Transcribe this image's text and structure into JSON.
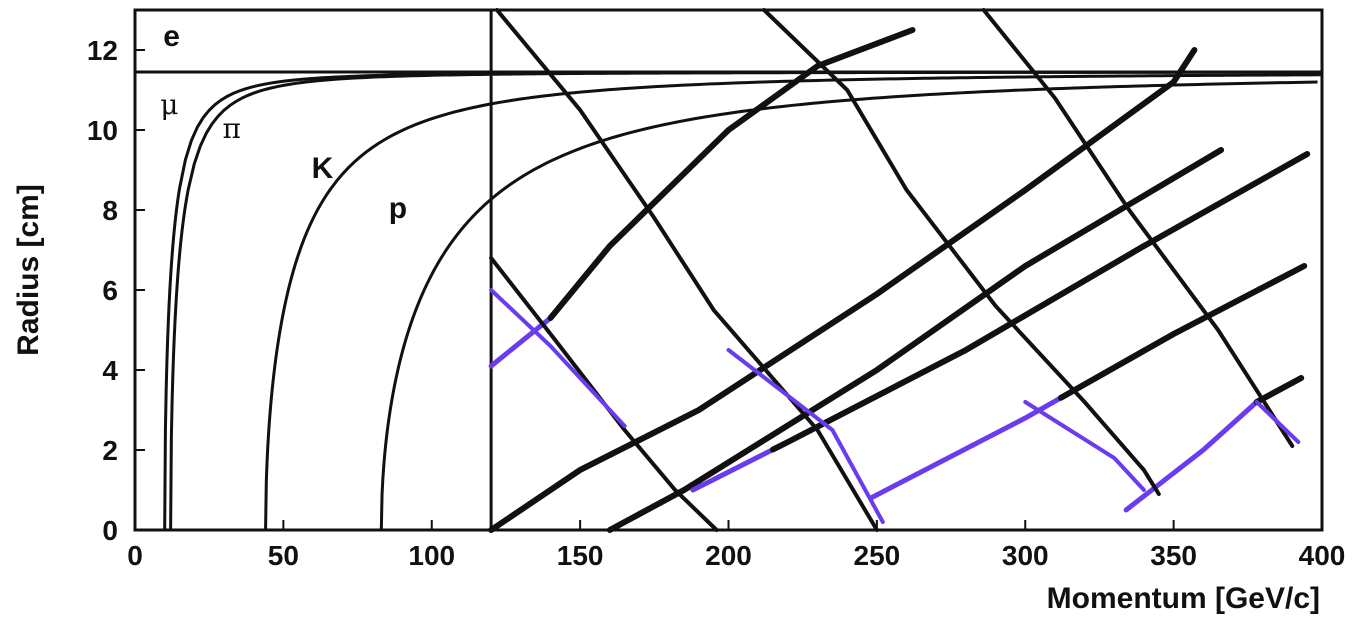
{
  "chart_data": {
    "type": "line",
    "xlabel": "Momentum [GeV/c]",
    "ylabel": "Radius [cm]",
    "xlim": [
      0,
      400
    ],
    "ylim": [
      0,
      13
    ],
    "x_ticks": [
      "0",
      "50",
      "100",
      "150",
      "200",
      "250",
      "300",
      "350",
      "400"
    ],
    "y_ticks": [
      "0",
      "2",
      "4",
      "6",
      "8",
      "10",
      "12"
    ],
    "grid": false,
    "colors": {
      "curve": "#111111",
      "highlight": "#6a3cf0"
    },
    "particle_curves": [
      {
        "label": "e",
        "threshold": 0.01,
        "r_inf": 11.45
      },
      {
        "label": "μ",
        "threshold": 10,
        "r_inf": 11.45
      },
      {
        "label": "π",
        "threshold": 12,
        "r_inf": 11.45
      },
      {
        "label": "K",
        "threshold": 44,
        "r_inf": 11.45
      },
      {
        "label": "p",
        "threshold": 83,
        "r_inf": 11.45
      }
    ],
    "cutoff_line": {
      "x": 120,
      "y_range": [
        0,
        13
      ]
    },
    "track_rising": [
      {
        "points": [
          [
            120,
            4.1
          ],
          [
            140,
            5.3
          ],
          [
            160,
            7.1
          ],
          [
            200,
            10.0
          ],
          [
            230,
            11.6
          ],
          [
            262,
            12.5
          ]
        ],
        "highlight_to_x": 140
      },
      {
        "points": [
          [
            120,
            0.0
          ],
          [
            150,
            1.5
          ],
          [
            190,
            3.0
          ],
          [
            250,
            5.9
          ],
          [
            300,
            8.5
          ],
          [
            350,
            11.2
          ],
          [
            357,
            12.0
          ]
        ],
        "highlight_to_x": 0
      },
      {
        "points": [
          [
            160,
            0.0
          ],
          [
            185,
            1.0
          ],
          [
            250,
            4.0
          ],
          [
            300,
            6.6
          ],
          [
            366,
            9.5
          ]
        ],
        "highlight_to_x": 0
      },
      {
        "points": [
          [
            188,
            1.0
          ],
          [
            220,
            2.2
          ],
          [
            280,
            4.5
          ],
          [
            340,
            7.1
          ],
          [
            395,
            9.4
          ]
        ],
        "highlight_to_x": 215
      },
      {
        "points": [
          [
            248,
            0.8
          ],
          [
            300,
            2.8
          ],
          [
            350,
            4.9
          ],
          [
            394,
            6.6
          ]
        ],
        "highlight_to_x": 312
      },
      {
        "points": [
          [
            334,
            0.5
          ],
          [
            360,
            2.0
          ],
          [
            378,
            3.2
          ],
          [
            393,
            3.8
          ]
        ],
        "highlight_to_x": 378
      }
    ],
    "track_falling": [
      {
        "points": [
          [
            122,
            13.0
          ],
          [
            150,
            10.5
          ],
          [
            175,
            7.8
          ],
          [
            195,
            5.5
          ],
          [
            230,
            2.5
          ],
          [
            250,
            0.0
          ]
        ]
      },
      {
        "points": [
          [
            120,
            6.8
          ],
          [
            140,
            4.9
          ],
          [
            165,
            2.5
          ],
          [
            182,
            1.0
          ],
          [
            196,
            0.0
          ]
        ]
      },
      {
        "points": [
          [
            212,
            13.0
          ],
          [
            240,
            11.0
          ],
          [
            260,
            8.5
          ],
          [
            290,
            5.6
          ],
          [
            320,
            3.2
          ],
          [
            340,
            1.5
          ],
          [
            345,
            0.9
          ]
        ]
      },
      {
        "points": [
          [
            286,
            13.0
          ],
          [
            310,
            10.8
          ],
          [
            335,
            8.0
          ],
          [
            365,
            5.0
          ],
          [
            390,
            2.1
          ]
        ]
      }
    ]
  }
}
